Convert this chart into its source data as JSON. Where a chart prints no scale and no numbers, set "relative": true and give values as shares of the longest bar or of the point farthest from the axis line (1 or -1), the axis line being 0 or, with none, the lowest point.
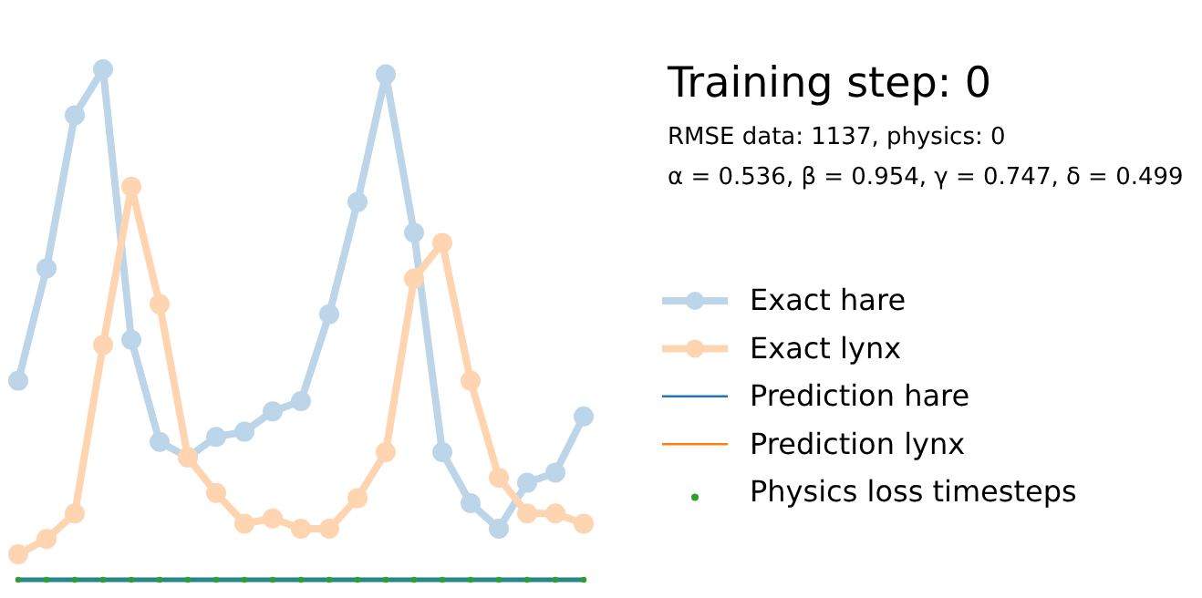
{
  "chart_data": {
    "type": "line",
    "title": "Training step: 0",
    "subtitle": "RMSE data: 1137, physics: 0",
    "annotations": [
      "α = 0.536, β = 0.954, γ = 0.747, δ = 0.499"
    ],
    "relative": true,
    "tick_labels": false,
    "grid": false,
    "legend": "right",
    "line_style": "solid",
    "categories": [
      null,
      null,
      null,
      null,
      null,
      null,
      null,
      null,
      null,
      null,
      null,
      null,
      null,
      null,
      null,
      null,
      null,
      null,
      null,
      null,
      null
    ],
    "series": [
      {
        "name": "Exact hare",
        "color": "#bcd5e8",
        "marker": "circle",
        "values": [
          0.39,
          0.61,
          0.91,
          1.0,
          0.47,
          0.27,
          0.24,
          0.28,
          0.29,
          0.33,
          0.35,
          0.52,
          0.74,
          0.99,
          0.68,
          0.25,
          0.15,
          0.1,
          0.19,
          0.21,
          0.32
        ]
      },
      {
        "name": "Exact lynx",
        "color": "#ffd4b0",
        "marker": "circle",
        "values": [
          0.05,
          0.08,
          0.13,
          0.46,
          0.77,
          0.54,
          0.24,
          0.17,
          0.11,
          0.12,
          0.1,
          0.1,
          0.16,
          0.25,
          0.59,
          0.66,
          0.39,
          0.2,
          0.13,
          0.13,
          0.11
        ]
      },
      {
        "name": "Prediction hare",
        "color": "#1f77b4",
        "marker": "none",
        "values": [
          0,
          0,
          0,
          0,
          0,
          0,
          0,
          0,
          0,
          0,
          0,
          0,
          0,
          0,
          0,
          0,
          0,
          0,
          0,
          0,
          0
        ]
      },
      {
        "name": "Prediction lynx",
        "color": "#ff7f0e",
        "marker": "none",
        "values": [
          null,
          null,
          null,
          null,
          null,
          null,
          null,
          null,
          null,
          null,
          null,
          null,
          null,
          null,
          null,
          null,
          null,
          null,
          null,
          null,
          null
        ]
      },
      {
        "name": "Physics loss timesteps",
        "color": "#2ca02c",
        "marker": "circle",
        "values": [
          0,
          0,
          0,
          0,
          0,
          0,
          0,
          0,
          0,
          0,
          0,
          0,
          0,
          0,
          0,
          0,
          0,
          0,
          0,
          0,
          0
        ]
      }
    ]
  }
}
